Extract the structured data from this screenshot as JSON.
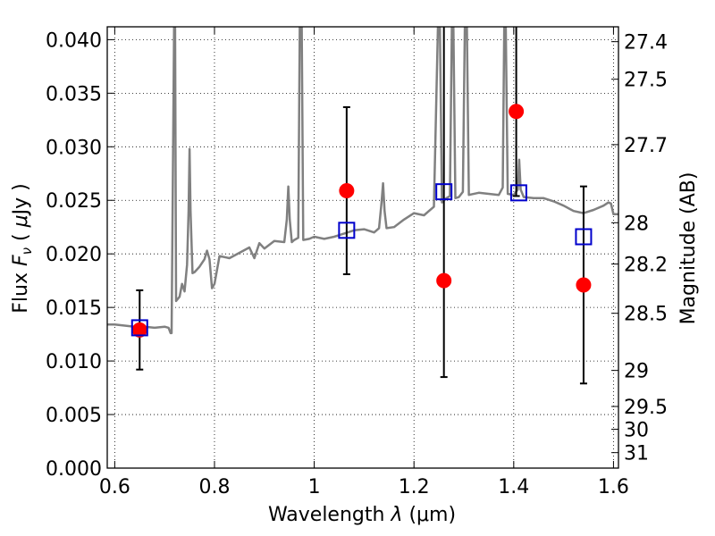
{
  "chart_data": {
    "type": "scatter",
    "title": "",
    "xlabel": "Wavelength  λ (μm)",
    "ylabel": "Flux  F_ν  ( μJy )",
    "ylabel_parts": {
      "prefix": "Flux  ",
      "symbol": "F",
      "subscript": "ν",
      "unit_open": "  ( ",
      "unit_mu": "μ",
      "unit_rest": "Jy )"
    },
    "xlabel_parts": {
      "prefix": "Wavelength  ",
      "symbol": "λ",
      "unit": " (μm)"
    },
    "y2label": "Magnitude (AB)",
    "xlim": [
      0.585,
      1.61
    ],
    "ylim": [
      0.0,
      0.0412
    ],
    "grid": true,
    "x_ticks": [
      {
        "value": 0.6,
        "label": "0.6"
      },
      {
        "value": 0.8,
        "label": "0.8"
      },
      {
        "value": 1.0,
        "label": "1"
      },
      {
        "value": 1.2,
        "label": "1.2"
      },
      {
        "value": 1.4,
        "label": "1.4"
      },
      {
        "value": 1.6,
        "label": "1.6"
      }
    ],
    "y_ticks": [
      {
        "value": 0.0,
        "label": "0.000"
      },
      {
        "value": 0.005,
        "label": "0.005"
      },
      {
        "value": 0.01,
        "label": "0.010"
      },
      {
        "value": 0.015,
        "label": "0.015"
      },
      {
        "value": 0.02,
        "label": "0.020"
      },
      {
        "value": 0.025,
        "label": "0.025"
      },
      {
        "value": 0.03,
        "label": "0.030"
      },
      {
        "value": 0.035,
        "label": "0.035"
      },
      {
        "value": 0.04,
        "label": "0.040"
      }
    ],
    "y2_ticks": [
      {
        "value": 27.4,
        "label": "27.4"
      },
      {
        "value": 27.5,
        "label": "27.5"
      },
      {
        "value": 27.7,
        "label": "27.7"
      },
      {
        "value": 28.0,
        "label": "28"
      },
      {
        "value": 28.2,
        "label": "28.2"
      },
      {
        "value": 28.5,
        "label": "28.5"
      },
      {
        "value": 29.0,
        "label": "29"
      },
      {
        "value": 29.5,
        "label": "29.5"
      },
      {
        "value": 30.0,
        "label": "30"
      },
      {
        "value": 31.0,
        "label": "31"
      }
    ],
    "colors": {
      "spectrum": "#808080",
      "observed": "#ff0000",
      "model": "#0000cc",
      "errorbar": "#000000"
    },
    "spectrum": [
      [
        0.585,
        0.0134
      ],
      [
        0.6,
        0.0134
      ],
      [
        0.62,
        0.0133
      ],
      [
        0.64,
        0.0132
      ],
      [
        0.66,
        0.0132
      ],
      [
        0.68,
        0.0131
      ],
      [
        0.7,
        0.0132
      ],
      [
        0.708,
        0.0131
      ],
      [
        0.712,
        0.0126
      ],
      [
        0.714,
        0.0126
      ],
      [
        0.717,
        0.03
      ],
      [
        0.719,
        0.0412
      ],
      [
        0.721,
        0.0412
      ],
      [
        0.723,
        0.0156
      ],
      [
        0.73,
        0.016
      ],
      [
        0.735,
        0.0172
      ],
      [
        0.74,
        0.0165
      ],
      [
        0.745,
        0.019
      ],
      [
        0.748,
        0.024
      ],
      [
        0.75,
        0.0298
      ],
      [
        0.752,
        0.024
      ],
      [
        0.756,
        0.0182
      ],
      [
        0.76,
        0.0183
      ],
      [
        0.77,
        0.0188
      ],
      [
        0.78,
        0.0195
      ],
      [
        0.785,
        0.0203
      ],
      [
        0.79,
        0.0195
      ],
      [
        0.795,
        0.0168
      ],
      [
        0.8,
        0.0172
      ],
      [
        0.81,
        0.0198
      ],
      [
        0.83,
        0.0196
      ],
      [
        0.85,
        0.0201
      ],
      [
        0.87,
        0.0206
      ],
      [
        0.88,
        0.0196
      ],
      [
        0.89,
        0.021
      ],
      [
        0.9,
        0.0205
      ],
      [
        0.92,
        0.0212
      ],
      [
        0.94,
        0.0211
      ],
      [
        0.945,
        0.0232
      ],
      [
        0.948,
        0.0263
      ],
      [
        0.951,
        0.0232
      ],
      [
        0.955,
        0.0211
      ],
      [
        0.96,
        0.0213
      ],
      [
        0.968,
        0.0215
      ],
      [
        0.971,
        0.0412
      ],
      [
        0.975,
        0.0412
      ],
      [
        0.978,
        0.0213
      ],
      [
        0.99,
        0.0214
      ],
      [
        1.0,
        0.0216
      ],
      [
        1.02,
        0.0214
      ],
      [
        1.04,
        0.0216
      ],
      [
        1.06,
        0.0219
      ],
      [
        1.08,
        0.0222
      ],
      [
        1.1,
        0.0223
      ],
      [
        1.12,
        0.022
      ],
      [
        1.13,
        0.0224
      ],
      [
        1.135,
        0.0248
      ],
      [
        1.138,
        0.0266
      ],
      [
        1.141,
        0.024
      ],
      [
        1.145,
        0.0224
      ],
      [
        1.16,
        0.0225
      ],
      [
        1.18,
        0.0232
      ],
      [
        1.2,
        0.0238
      ],
      [
        1.22,
        0.0236
      ],
      [
        1.23,
        0.024
      ],
      [
        1.24,
        0.0244
      ],
      [
        1.248,
        0.0412
      ],
      [
        1.252,
        0.0412
      ],
      [
        1.256,
        0.0248
      ],
      [
        1.265,
        0.0252
      ],
      [
        1.272,
        0.0254
      ],
      [
        1.276,
        0.0412
      ],
      [
        1.279,
        0.0412
      ],
      [
        1.283,
        0.0252
      ],
      [
        1.29,
        0.0253
      ],
      [
        1.298,
        0.0258
      ],
      [
        1.302,
        0.0412
      ],
      [
        1.306,
        0.0412
      ],
      [
        1.31,
        0.0255
      ],
      [
        1.33,
        0.0257
      ],
      [
        1.35,
        0.0256
      ],
      [
        1.37,
        0.0255
      ],
      [
        1.378,
        0.0262
      ],
      [
        1.381,
        0.0412
      ],
      [
        1.384,
        0.0412
      ],
      [
        1.388,
        0.0256
      ],
      [
        1.4,
        0.0255
      ],
      [
        1.408,
        0.026
      ],
      [
        1.411,
        0.0288
      ],
      [
        1.414,
        0.026
      ],
      [
        1.42,
        0.0253
      ],
      [
        1.44,
        0.0252
      ],
      [
        1.46,
        0.0252
      ],
      [
        1.48,
        0.0249
      ],
      [
        1.5,
        0.0245
      ],
      [
        1.52,
        0.024
      ],
      [
        1.54,
        0.0238
      ],
      [
        1.56,
        0.0241
      ],
      [
        1.58,
        0.0245
      ],
      [
        1.59,
        0.0248
      ],
      [
        1.595,
        0.0247
      ],
      [
        1.6,
        0.0237
      ],
      [
        1.61,
        0.0237
      ]
    ],
    "observed": [
      {
        "x": 0.65,
        "y": 0.0129,
        "yerr_low": 0.0092,
        "yerr_high": 0.0166
      },
      {
        "x": 1.065,
        "y": 0.0259,
        "yerr_low": 0.0181,
        "yerr_high": 0.0337
      },
      {
        "x": 1.26,
        "y": 0.0175,
        "yerr_low": 0.0085,
        "yerr_high": 0.0412
      },
      {
        "x": 1.405,
        "y": 0.0333,
        "yerr_low": 0.0254,
        "yerr_high": 0.0412
      },
      {
        "x": 1.54,
        "y": 0.0171,
        "yerr_low": 0.0079,
        "yerr_high": 0.0263
      }
    ],
    "model": [
      {
        "x": 0.65,
        "y": 0.0131
      },
      {
        "x": 1.065,
        "y": 0.0222
      },
      {
        "x": 1.26,
        "y": 0.0258
      },
      {
        "x": 1.41,
        "y": 0.0257
      },
      {
        "x": 1.54,
        "y": 0.0216
      }
    ]
  }
}
